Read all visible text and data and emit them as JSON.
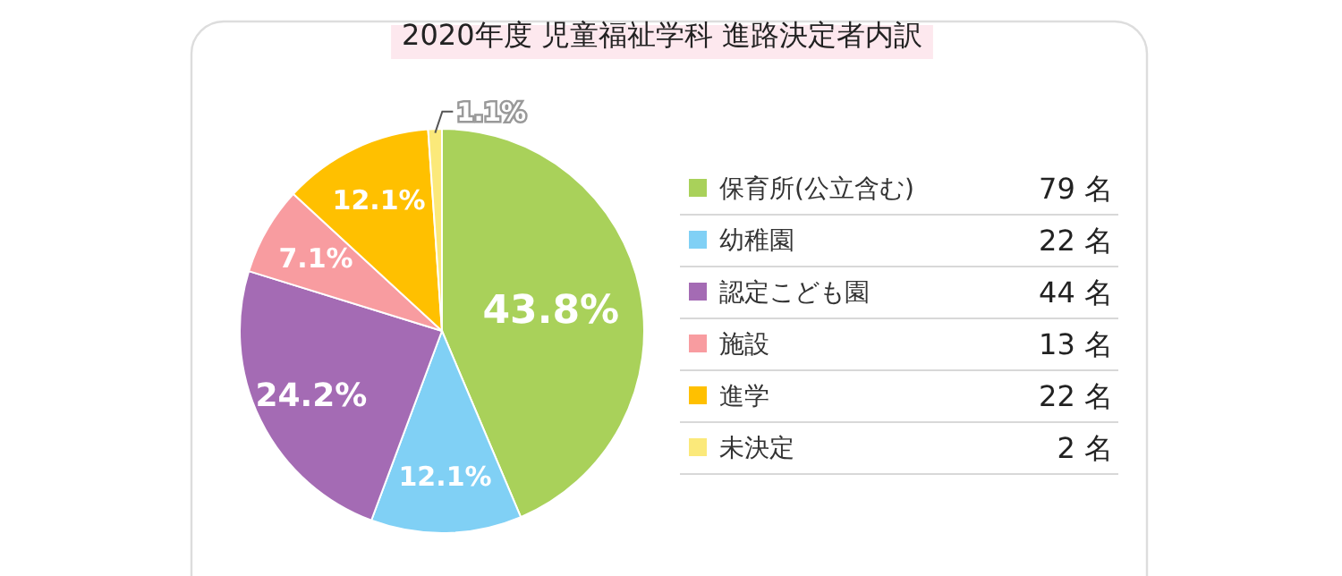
{
  "chart_data": {
    "type": "pie",
    "title": "2020年度 児童福祉学科 進路決定者内訳",
    "categories": [
      "保育所(公立含む)",
      "幼稚園",
      "認定こども園",
      "施設",
      "進学",
      "未決定"
    ],
    "values": [
      43.8,
      12.1,
      24.2,
      7.1,
      12.1,
      1.1
    ],
    "colors": [
      "#a9d15a",
      "#80d0f5",
      "#a46bb4",
      "#f89ca0",
      "#ffc000",
      "#fbe97a"
    ],
    "value_labels": [
      "43.8%",
      "12.1%",
      "24.2%",
      "7.1%",
      "12.1%",
      "1.1%"
    ],
    "annotations": [
      "79 名",
      "22 名",
      "44 名",
      "13 名",
      "22 名",
      "2 名"
    ],
    "legend": "right"
  }
}
